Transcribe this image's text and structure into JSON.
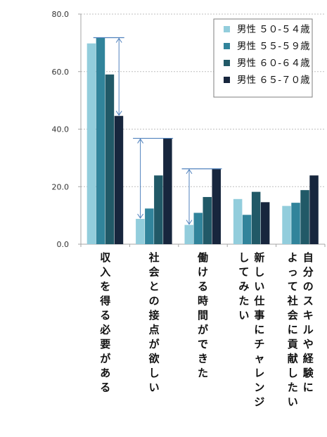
{
  "chart_data": {
    "type": "bar",
    "title": "",
    "xlabel": "",
    "ylabel": "",
    "ylim": [
      0,
      80
    ],
    "yticks": [
      "0.0",
      "20.0",
      "40.0",
      "60.0",
      "80.0"
    ],
    "grid": true,
    "legend_position": "top-right",
    "categories": [
      "収入を得る必要がある",
      "社会との接点が欲しい",
      "働ける時間ができた",
      "新しい仕事にチャレンジしてみたい",
      "自分のスキルや経験によって社会に貢献したい"
    ],
    "category_lines": [
      [
        "収入を得る必要がある"
      ],
      [
        "社会との接点が欲しい"
      ],
      [
        "働ける時間ができた"
      ],
      [
        "新しい仕事にチャレンジ",
        "してみたい"
      ],
      [
        "自分のスキルや経験に",
        "よって社会に貢献したい"
      ]
    ],
    "series": [
      {
        "name": "男性 ５０-５４歳",
        "color": "#92CDDC",
        "values": [
          69.8,
          8.8,
          6.7,
          15.7,
          13.3
        ]
      },
      {
        "name": "男性 ５５-５９歳",
        "color": "#31849B",
        "values": [
          71.8,
          12.4,
          10.9,
          10.2,
          14.4
        ]
      },
      {
        "name": "男性 ６０-６４歳",
        "color": "#215967",
        "values": [
          59.0,
          23.9,
          16.4,
          18.2,
          18.8
        ]
      },
      {
        "name": "男性 ６５-７０歳",
        "color": "#17263D",
        "values": [
          44.6,
          36.8,
          26.2,
          14.6,
          23.9
        ]
      }
    ],
    "annotations": [
      {
        "category_index": 0,
        "from_series": 3,
        "to_series": 1
      },
      {
        "category_index": 1,
        "from_series": 0,
        "to_series": 3
      },
      {
        "category_index": 2,
        "from_series": 0,
        "to_series": 3
      }
    ],
    "colors": {
      "axis": "#A6A6A6",
      "grid": "#BFBFBF",
      "arrow": "#4F81BD"
    }
  }
}
